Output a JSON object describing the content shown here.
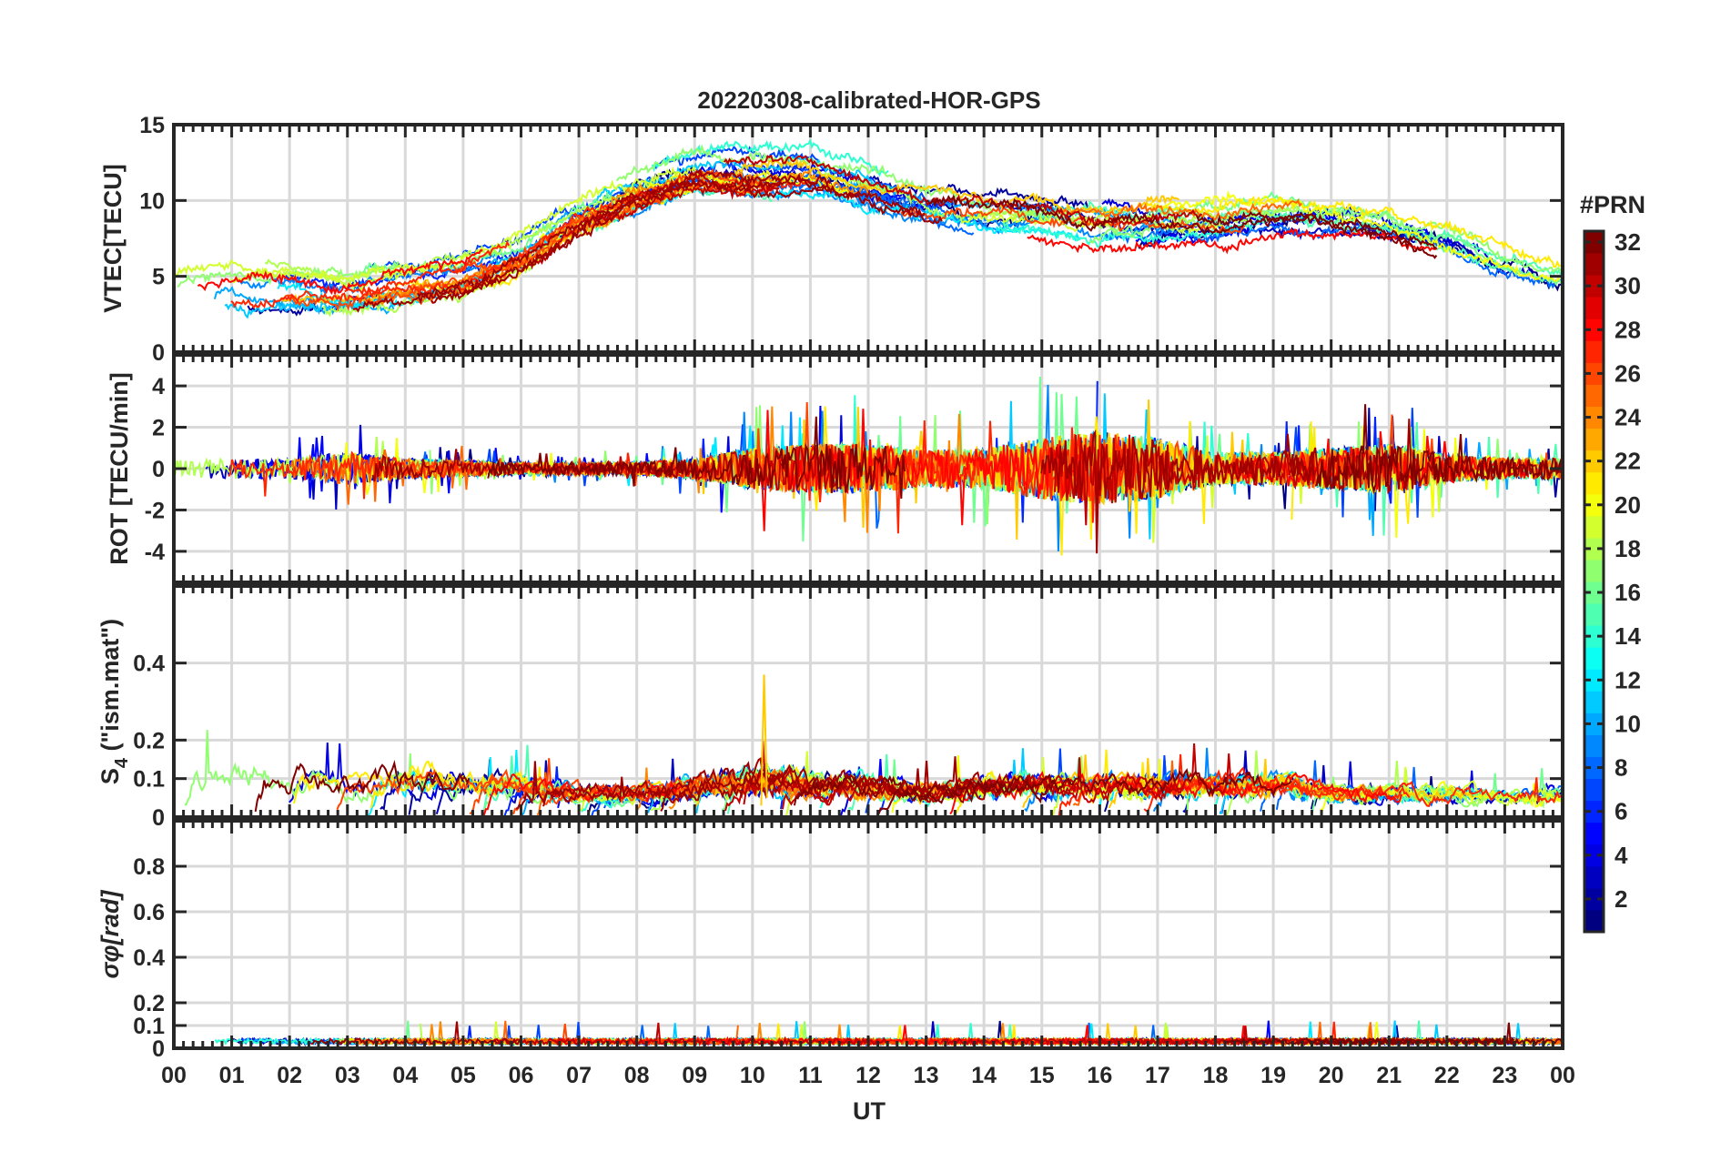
{
  "chart_data": {
    "type": "line",
    "title": "20220308-calibrated-HOR-GPS",
    "xlabel": "UT",
    "xlim": [
      0,
      24
    ],
    "xtick_labels": [
      "00",
      "01",
      "02",
      "03",
      "04",
      "05",
      "06",
      "07",
      "08",
      "09",
      "10",
      "11",
      "12",
      "13",
      "14",
      "15",
      "16",
      "17",
      "18",
      "19",
      "20",
      "21",
      "22",
      "23",
      "00"
    ],
    "grid": true,
    "colorbar": {
      "label": "#PRN",
      "range": [
        1,
        32
      ],
      "tick_labels": [
        "2",
        "4",
        "6",
        "8",
        "10",
        "12",
        "14",
        "16",
        "18",
        "20",
        "22",
        "24",
        "26",
        "28",
        "30",
        "32"
      ],
      "colormap": "jet"
    },
    "panels": [
      {
        "ylabel": "VTEC[TECU]",
        "ylim": [
          0,
          15
        ],
        "ytick_labels": [
          "0",
          "5",
          "10",
          "15"
        ],
        "yticks": [
          0,
          5,
          10,
          15
        ],
        "hourly_typical": [
          4,
          4.5,
          4.3,
          4,
          4.5,
          5,
          6.5,
          9,
          10.5,
          11.5,
          11.5,
          11.5,
          10.5,
          9.5,
          9,
          9,
          8.5,
          8.5,
          8.5,
          9,
          9,
          8.5,
          7.5,
          6,
          5
        ]
      },
      {
        "ylabel": "ROT [TECU/min]",
        "ylim": [
          -5.5,
          5.5
        ],
        "ytick_labels": [
          "-4",
          "-2",
          "0",
          "2",
          "4"
        ],
        "yticks": [
          -4,
          -2,
          0,
          2,
          4
        ],
        "hourly_amplitude": [
          0.4,
          0.5,
          0.5,
          0.8,
          0.5,
          0.4,
          0.3,
          0.3,
          0.3,
          0.5,
          1,
          1.2,
          1.2,
          0.9,
          1,
          1.5,
          1.8,
          1.5,
          0.8,
          0.8,
          1,
          1.2,
          0.7,
          0.5,
          0.5
        ]
      },
      {
        "ylabel": "S4 (\"ism.mat\")",
        "ylabel_main": "S",
        "ylabel_sub": "4",
        "ylabel_rest": " (\"ism.mat\")",
        "ylim": [
          0,
          0.6
        ],
        "ytick_labels": [
          "0",
          "0.1",
          "0.2",
          "0.4"
        ],
        "yticks": [
          0,
          0.1,
          0.2,
          0.4
        ],
        "hourly_typical_max": [
          0.1,
          0.12,
          0.1,
          0.08,
          0.1,
          0.08,
          0.08,
          0.06,
          0.06,
          0.08,
          0.1,
          0.08,
          0.08,
          0.06,
          0.08,
          0.08,
          0.08,
          0.08,
          0.08,
          0.08,
          0.06,
          0.06,
          0.06,
          0.05,
          0.06
        ]
      },
      {
        "ylabel": "σφ[rad]",
        "ylabel_main": "σ",
        "ylabel_sub": "φ",
        "ylabel_rest": "[rad]",
        "ylim": [
          0,
          1
        ],
        "ytick_labels": [
          "0",
          "0.1",
          "0.2",
          "0.4",
          "0.6",
          "0.8"
        ],
        "yticks": [
          0,
          0.1,
          0.2,
          0.4,
          0.6,
          0.8
        ],
        "typical": 0.03
      }
    ]
  }
}
